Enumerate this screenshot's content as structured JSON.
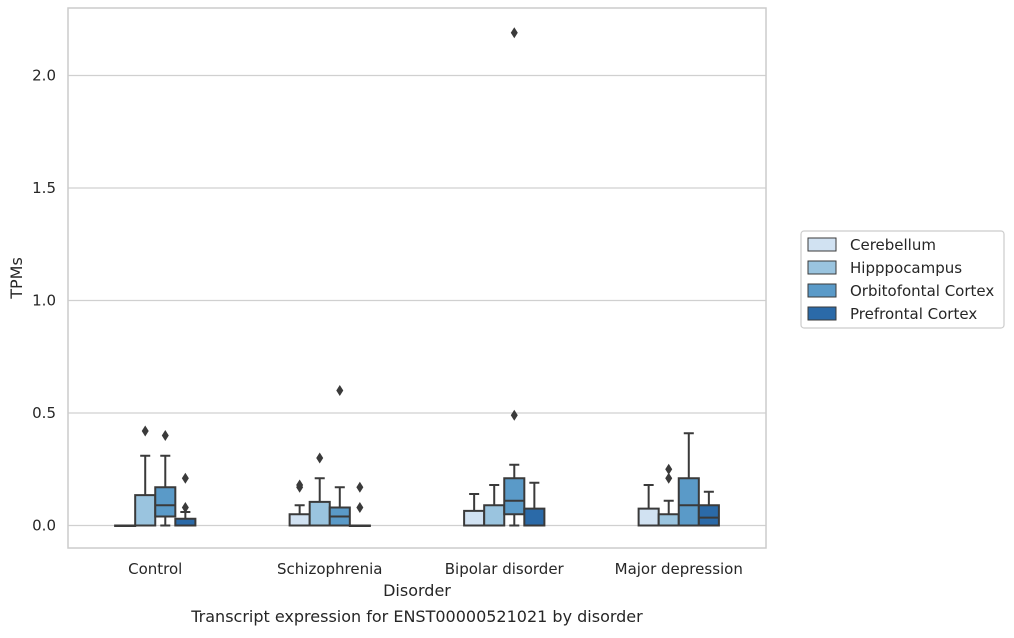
{
  "chart_data": {
    "type": "box",
    "title": "Transcript expression for ENST00000521021 by disorder",
    "xlabel": "Disorder",
    "ylabel": "TPMs",
    "ylim": [
      -0.1,
      2.3
    ],
    "yticks": [
      0.0,
      0.5,
      1.0,
      1.5,
      2.0
    ],
    "ytick_labels": [
      "0.0",
      "0.5",
      "1.0",
      "1.5",
      "2.0"
    ],
    "grid": "horizontal",
    "legend_position": "right",
    "categories": [
      "Control",
      "Schizophrenia",
      "Bipolar disorder",
      "Major depression"
    ],
    "series": [
      {
        "name": "Cerebellum",
        "color": "#d1e2f2",
        "boxes": [
          {
            "whisker_low": 0.0,
            "q1": 0.0,
            "median": 0.0,
            "q3": 0.0,
            "whisker_high": 0.0,
            "outliers": []
          },
          {
            "whisker_low": 0.0,
            "q1": 0.0,
            "median": 0.0,
            "q3": 0.05,
            "whisker_high": 0.09,
            "outliers": [
              0.17,
              0.18
            ]
          },
          {
            "whisker_low": 0.0,
            "q1": 0.0,
            "median": 0.0,
            "q3": 0.065,
            "whisker_high": 0.14,
            "outliers": []
          },
          {
            "whisker_low": 0.0,
            "q1": 0.0,
            "median": 0.0,
            "q3": 0.075,
            "whisker_high": 0.18,
            "outliers": []
          }
        ]
      },
      {
        "name": "Hipppocampus",
        "color": "#9ac4df",
        "boxes": [
          {
            "whisker_low": 0.0,
            "q1": 0.0,
            "median": 0.0,
            "q3": 0.135,
            "whisker_high": 0.31,
            "outliers": [
              0.42
            ]
          },
          {
            "whisker_low": 0.0,
            "q1": 0.0,
            "median": 0.0,
            "q3": 0.105,
            "whisker_high": 0.21,
            "outliers": [
              0.3
            ]
          },
          {
            "whisker_low": 0.0,
            "q1": 0.0,
            "median": 0.0,
            "q3": 0.09,
            "whisker_high": 0.18,
            "outliers": []
          },
          {
            "whisker_low": 0.0,
            "q1": 0.0,
            "median": 0.0,
            "q3": 0.05,
            "whisker_high": 0.11,
            "outliers": [
              0.21,
              0.25
            ]
          }
        ]
      },
      {
        "name": "Orbitofontal Cortex",
        "color": "#5a9ac8",
        "boxes": [
          {
            "whisker_low": 0.0,
            "q1": 0.04,
            "median": 0.09,
            "q3": 0.17,
            "whisker_high": 0.31,
            "outliers": [
              0.4
            ]
          },
          {
            "whisker_low": 0.0,
            "q1": 0.0,
            "median": 0.04,
            "q3": 0.08,
            "whisker_high": 0.17,
            "outliers": [
              0.6
            ]
          },
          {
            "whisker_low": 0.0,
            "q1": 0.05,
            "median": 0.11,
            "q3": 0.21,
            "whisker_high": 0.27,
            "outliers": [
              0.49,
              2.19
            ]
          },
          {
            "whisker_low": 0.0,
            "q1": 0.0,
            "median": 0.09,
            "q3": 0.21,
            "whisker_high": 0.41,
            "outliers": []
          }
        ]
      },
      {
        "name": "Prefrontal Cortex",
        "color": "#2b6aa8",
        "boxes": [
          {
            "whisker_low": 0.0,
            "q1": 0.0,
            "median": 0.0,
            "q3": 0.03,
            "whisker_high": 0.06,
            "outliers": [
              0.08,
              0.21
            ]
          },
          {
            "whisker_low": 0.0,
            "q1": 0.0,
            "median": 0.0,
            "q3": 0.0,
            "whisker_high": 0.0,
            "outliers": [
              0.08,
              0.17
            ]
          },
          {
            "whisker_low": 0.0,
            "q1": 0.0,
            "median": 0.0,
            "q3": 0.075,
            "whisker_high": 0.19,
            "outliers": []
          },
          {
            "whisker_low": 0.0,
            "q1": 0.0,
            "median": 0.035,
            "q3": 0.09,
            "whisker_high": 0.15,
            "outliers": []
          }
        ]
      }
    ]
  }
}
